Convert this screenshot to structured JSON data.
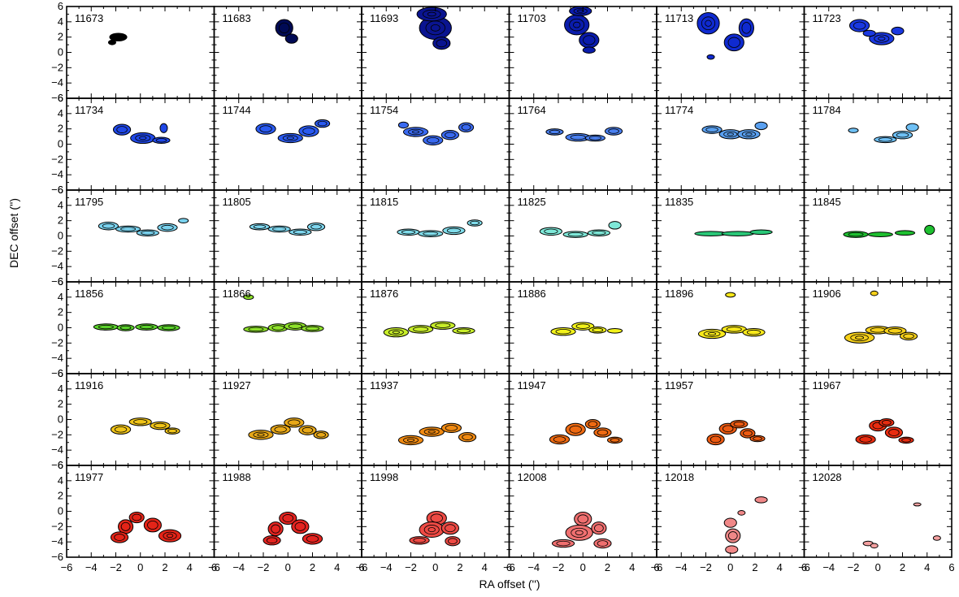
{
  "chart_data": {
    "type": "channel-map-contour",
    "xlabel": "RA offset ('')",
    "ylabel": "DEC offset ('')",
    "xlim": [
      -6,
      6
    ],
    "ylim": [
      -6,
      6
    ],
    "x_ticks": [
      -6,
      -4,
      -2,
      0,
      2,
      4,
      6
    ],
    "y_ticks": [
      -6,
      -4,
      -2,
      0,
      2,
      4,
      6
    ],
    "x_tick_labels": [
      "−6",
      "−4",
      "−2",
      "0",
      "2",
      "4",
      "6"
    ],
    "y_tick_labels": [
      "−6",
      "−4",
      "−2",
      "0",
      "2",
      "4",
      "6"
    ],
    "grid": false,
    "layout": {
      "rows": 6,
      "cols": 6
    },
    "panels": [
      {
        "label": "11673",
        "color": "#000000",
        "blobs": [
          [
            -1.8,
            2.0,
            0.7,
            0.5
          ],
          [
            -2.3,
            1.3,
            0.3,
            0.3
          ]
        ]
      },
      {
        "label": "11683",
        "color": "#000a55",
        "blobs": [
          [
            -0.3,
            3.2,
            0.7,
            1.1
          ],
          [
            0.3,
            1.8,
            0.5,
            0.6
          ]
        ]
      },
      {
        "label": "11693",
        "color": "#0a1490",
        "blobs": [
          [
            0.0,
            3.2,
            1.3,
            1.5
          ],
          [
            0.5,
            1.2,
            0.7,
            0.8
          ],
          [
            -0.3,
            5.0,
            1.2,
            0.9
          ]
        ]
      },
      {
        "label": "11703",
        "color": "#0a1cac",
        "blobs": [
          [
            -0.5,
            3.6,
            1.0,
            1.3
          ],
          [
            0.5,
            1.6,
            0.8,
            1.0
          ],
          [
            0.5,
            0.3,
            0.5,
            0.4
          ],
          [
            -0.2,
            5.4,
            0.9,
            0.6
          ]
        ]
      },
      {
        "label": "11713",
        "color": "#0f2ad0",
        "blobs": [
          [
            -1.8,
            3.8,
            0.9,
            1.4
          ],
          [
            0.3,
            1.3,
            0.8,
            1.1
          ],
          [
            1.3,
            3.2,
            0.6,
            1.2
          ],
          [
            -1.6,
            -0.6,
            0.3,
            0.3
          ]
        ]
      },
      {
        "label": "11723",
        "color": "#1a38e0",
        "blobs": [
          [
            -1.5,
            3.5,
            0.8,
            0.8
          ],
          [
            0.3,
            1.8,
            1.0,
            0.8
          ],
          [
            1.6,
            2.8,
            0.5,
            0.5
          ],
          [
            -0.7,
            2.5,
            0.5,
            0.4
          ]
        ]
      },
      {
        "label": "11734",
        "color": "#1f47e6",
        "blobs": [
          [
            -1.5,
            1.9,
            0.7,
            0.7
          ],
          [
            0.2,
            0.8,
            1.0,
            0.7
          ],
          [
            1.7,
            0.5,
            0.7,
            0.4
          ],
          [
            1.9,
            2.1,
            0.3,
            0.6
          ]
        ]
      },
      {
        "label": "11744",
        "color": "#2a5af0",
        "blobs": [
          [
            -1.8,
            2.0,
            0.8,
            0.7
          ],
          [
            0.2,
            0.8,
            1.0,
            0.6
          ],
          [
            1.7,
            1.7,
            0.8,
            0.7
          ],
          [
            2.8,
            2.7,
            0.6,
            0.5
          ]
        ]
      },
      {
        "label": "11754",
        "color": "#3a6af0",
        "blobs": [
          [
            -1.6,
            1.6,
            1.0,
            0.6
          ],
          [
            -0.2,
            0.5,
            0.8,
            0.6
          ],
          [
            1.2,
            1.2,
            0.7,
            0.6
          ],
          [
            2.5,
            2.2,
            0.6,
            0.6
          ],
          [
            -2.6,
            2.5,
            0.4,
            0.4
          ]
        ]
      },
      {
        "label": "11764",
        "color": "#4a80f0",
        "blobs": [
          [
            -2.3,
            1.6,
            0.7,
            0.4
          ],
          [
            -0.4,
            0.9,
            1.0,
            0.5
          ],
          [
            1.0,
            0.8,
            0.8,
            0.4
          ],
          [
            2.5,
            1.7,
            0.7,
            0.5
          ]
        ]
      },
      {
        "label": "11774",
        "color": "#5aa0f0",
        "blobs": [
          [
            -1.5,
            1.9,
            0.8,
            0.5
          ],
          [
            0.0,
            1.3,
            0.9,
            0.6
          ],
          [
            1.5,
            1.3,
            0.9,
            0.6
          ],
          [
            2.5,
            2.4,
            0.5,
            0.5
          ]
        ]
      },
      {
        "label": "11784",
        "color": "#6ec0f5",
        "blobs": [
          [
            0.6,
            0.6,
            0.9,
            0.4
          ],
          [
            2.0,
            1.2,
            0.8,
            0.5
          ],
          [
            2.8,
            2.2,
            0.5,
            0.5
          ],
          [
            -2.0,
            1.8,
            0.4,
            0.3
          ]
        ]
      },
      {
        "label": "11795",
        "color": "#7ad2ee",
        "blobs": [
          [
            -2.6,
            1.3,
            0.8,
            0.5
          ],
          [
            -1.0,
            0.9,
            1.0,
            0.4
          ],
          [
            0.6,
            0.4,
            0.9,
            0.4
          ],
          [
            2.2,
            1.1,
            0.8,
            0.5
          ],
          [
            3.5,
            2.0,
            0.4,
            0.3
          ]
        ]
      },
      {
        "label": "11805",
        "color": "#7ed6ee",
        "blobs": [
          [
            -2.3,
            1.2,
            0.8,
            0.4
          ],
          [
            -0.7,
            0.9,
            0.9,
            0.4
          ],
          [
            1.0,
            0.5,
            0.9,
            0.4
          ],
          [
            2.3,
            1.2,
            0.7,
            0.5
          ]
        ]
      },
      {
        "label": "11815",
        "color": "#80dcea",
        "blobs": [
          [
            -2.2,
            0.5,
            0.9,
            0.4
          ],
          [
            -0.4,
            0.3,
            1.0,
            0.4
          ],
          [
            1.5,
            0.7,
            0.9,
            0.5
          ],
          [
            3.2,
            1.7,
            0.6,
            0.4
          ]
        ]
      },
      {
        "label": "11825",
        "color": "#7ee8d8",
        "blobs": [
          [
            -2.6,
            0.6,
            0.9,
            0.5
          ],
          [
            -0.6,
            0.2,
            1.0,
            0.4
          ],
          [
            1.3,
            0.4,
            0.9,
            0.4
          ],
          [
            2.6,
            1.4,
            0.5,
            0.5
          ]
        ]
      },
      {
        "label": "11835",
        "color": "#2ac878",
        "blobs": [
          [
            -1.6,
            0.3,
            1.3,
            0.3
          ],
          [
            0.6,
            0.3,
            1.3,
            0.3
          ],
          [
            2.5,
            0.5,
            0.9,
            0.3
          ]
        ]
      },
      {
        "label": "11845",
        "color": "#1ec030",
        "blobs": [
          [
            -1.8,
            0.2,
            1.0,
            0.4
          ],
          [
            0.2,
            0.2,
            1.0,
            0.3
          ],
          [
            2.2,
            0.4,
            0.8,
            0.3
          ],
          [
            4.2,
            0.8,
            0.4,
            0.6
          ]
        ]
      },
      {
        "label": "11856",
        "color": "#5ad22a",
        "blobs": [
          [
            -2.8,
            0.1,
            1.0,
            0.4
          ],
          [
            -1.2,
            0.0,
            0.7,
            0.4
          ],
          [
            0.5,
            0.1,
            0.9,
            0.4
          ],
          [
            2.3,
            0.0,
            0.9,
            0.4
          ]
        ]
      },
      {
        "label": "11866",
        "color": "#8ee22a",
        "blobs": [
          [
            -2.6,
            -0.2,
            1.0,
            0.4
          ],
          [
            -0.8,
            0.0,
            0.8,
            0.5
          ],
          [
            0.6,
            0.2,
            0.9,
            0.5
          ],
          [
            2.0,
            -0.1,
            0.9,
            0.4
          ],
          [
            -3.2,
            4.0,
            0.4,
            0.3
          ]
        ]
      },
      {
        "label": "11876",
        "color": "#c8ee2a",
        "blobs": [
          [
            -3.2,
            -0.6,
            1.0,
            0.6
          ],
          [
            -1.2,
            -0.2,
            1.0,
            0.5
          ],
          [
            0.6,
            0.3,
            1.0,
            0.5
          ],
          [
            2.3,
            -0.4,
            0.9,
            0.4
          ]
        ]
      },
      {
        "label": "11886",
        "color": "#f2f21a",
        "blobs": [
          [
            -1.6,
            -0.5,
            1.0,
            0.5
          ],
          [
            0.0,
            0.2,
            0.9,
            0.5
          ],
          [
            1.2,
            -0.3,
            0.7,
            0.4
          ],
          [
            2.6,
            -0.4,
            0.6,
            0.3
          ]
        ]
      },
      {
        "label": "11896",
        "color": "#f8e81a",
        "blobs": [
          [
            -1.5,
            -0.8,
            1.1,
            0.6
          ],
          [
            0.3,
            -0.2,
            1.0,
            0.5
          ],
          [
            1.9,
            -0.6,
            0.9,
            0.5
          ],
          [
            0.0,
            4.3,
            0.4,
            0.3
          ]
        ]
      },
      {
        "label": "11906",
        "color": "#f6d01a",
        "blobs": [
          [
            -1.5,
            -1.3,
            1.2,
            0.7
          ],
          [
            0.0,
            -0.3,
            1.0,
            0.5
          ],
          [
            1.4,
            -0.4,
            0.9,
            0.5
          ],
          [
            2.5,
            -1.1,
            0.7,
            0.5
          ],
          [
            -0.3,
            4.5,
            0.3,
            0.3
          ]
        ]
      },
      {
        "label": "11916",
        "color": "#f0c418",
        "blobs": [
          [
            -1.6,
            -1.3,
            0.8,
            0.6
          ],
          [
            0.0,
            -0.3,
            0.9,
            0.5
          ],
          [
            1.6,
            -0.8,
            0.8,
            0.5
          ],
          [
            2.6,
            -1.5,
            0.6,
            0.4
          ]
        ]
      },
      {
        "label": "11927",
        "color": "#e8a818",
        "blobs": [
          [
            -2.2,
            -2.0,
            1.0,
            0.6
          ],
          [
            -0.6,
            -1.3,
            0.8,
            0.6
          ],
          [
            0.5,
            -0.4,
            0.8,
            0.6
          ],
          [
            1.6,
            -1.4,
            0.7,
            0.6
          ],
          [
            2.7,
            -2.0,
            0.6,
            0.5
          ]
        ]
      },
      {
        "label": "11937",
        "color": "#f08a12",
        "blobs": [
          [
            -2.0,
            -2.7,
            1.0,
            0.6
          ],
          [
            -0.3,
            -1.6,
            1.0,
            0.6
          ],
          [
            1.3,
            -1.1,
            0.8,
            0.6
          ],
          [
            2.6,
            -2.3,
            0.7,
            0.6
          ]
        ]
      },
      {
        "label": "11947",
        "color": "#ee6a12",
        "blobs": [
          [
            -1.9,
            -2.6,
            0.8,
            0.6
          ],
          [
            -0.6,
            -1.3,
            0.8,
            0.8
          ],
          [
            0.8,
            -0.6,
            0.6,
            0.6
          ],
          [
            1.6,
            -1.7,
            0.7,
            0.6
          ],
          [
            2.6,
            -2.7,
            0.6,
            0.4
          ]
        ]
      },
      {
        "label": "11957",
        "color": "#ec5a12",
        "blobs": [
          [
            -1.2,
            -2.6,
            0.7,
            0.7
          ],
          [
            -0.2,
            -1.2,
            0.7,
            0.7
          ],
          [
            0.7,
            -0.6,
            0.7,
            0.5
          ],
          [
            1.4,
            -1.8,
            0.6,
            0.6
          ],
          [
            2.2,
            -2.5,
            0.6,
            0.4
          ]
        ]
      },
      {
        "label": "11967",
        "color": "#e82c10",
        "blobs": [
          [
            -1.0,
            -2.6,
            0.8,
            0.6
          ],
          [
            0.0,
            -0.8,
            0.7,
            0.7
          ],
          [
            0.7,
            -0.4,
            0.6,
            0.5
          ],
          [
            1.3,
            -1.7,
            0.7,
            0.7
          ],
          [
            2.3,
            -2.7,
            0.6,
            0.4
          ]
        ]
      },
      {
        "label": "11977",
        "color": "#e42418",
        "blobs": [
          [
            -0.3,
            -0.8,
            0.6,
            0.7
          ],
          [
            -1.2,
            -2.0,
            0.6,
            0.9
          ],
          [
            -1.7,
            -3.4,
            0.7,
            0.7
          ],
          [
            1.0,
            -1.8,
            0.7,
            0.9
          ],
          [
            2.4,
            -3.2,
            0.9,
            0.8
          ]
        ]
      },
      {
        "label": "11988",
        "color": "#e42420",
        "blobs": [
          [
            0.0,
            -0.9,
            0.7,
            0.8
          ],
          [
            -1.0,
            -2.3,
            0.6,
            0.9
          ],
          [
            -1.3,
            -3.8,
            0.7,
            0.6
          ],
          [
            1.0,
            -2.0,
            0.7,
            0.9
          ],
          [
            2.0,
            -3.6,
            0.8,
            0.7
          ]
        ]
      },
      {
        "label": "11998",
        "color": "#ee4a44",
        "blobs": [
          [
            0.1,
            -0.9,
            0.8,
            0.9
          ],
          [
            -0.3,
            -2.4,
            1.0,
            1.0
          ],
          [
            1.2,
            -2.2,
            0.7,
            0.8
          ],
          [
            -1.3,
            -3.8,
            0.8,
            0.5
          ],
          [
            1.4,
            -3.9,
            0.6,
            0.6
          ]
        ]
      },
      {
        "label": "12008",
        "color": "#f07070",
        "blobs": [
          [
            0.0,
            -1.0,
            0.7,
            0.9
          ],
          [
            -0.3,
            -2.8,
            1.1,
            1.0
          ],
          [
            1.3,
            -2.2,
            0.6,
            0.8
          ],
          [
            1.6,
            -4.2,
            0.7,
            0.6
          ],
          [
            -1.6,
            -4.2,
            0.9,
            0.5
          ]
        ]
      },
      {
        "label": "12018",
        "color": "#f08888",
        "blobs": [
          [
            0.0,
            -1.5,
            0.5,
            0.6
          ],
          [
            0.2,
            -3.2,
            0.6,
            0.9
          ],
          [
            0.1,
            -5.0,
            0.5,
            0.5
          ],
          [
            2.5,
            1.5,
            0.5,
            0.4
          ],
          [
            0.9,
            -0.2,
            0.3,
            0.3
          ]
        ]
      },
      {
        "label": "12028",
        "color": "#f4a0a0",
        "blobs": [
          [
            -0.8,
            -4.2,
            0.4,
            0.3
          ],
          [
            -0.3,
            -4.5,
            0.3,
            0.3
          ],
          [
            4.8,
            -3.5,
            0.3,
            0.3
          ],
          [
            3.2,
            0.9,
            0.3,
            0.2
          ]
        ]
      }
    ]
  }
}
